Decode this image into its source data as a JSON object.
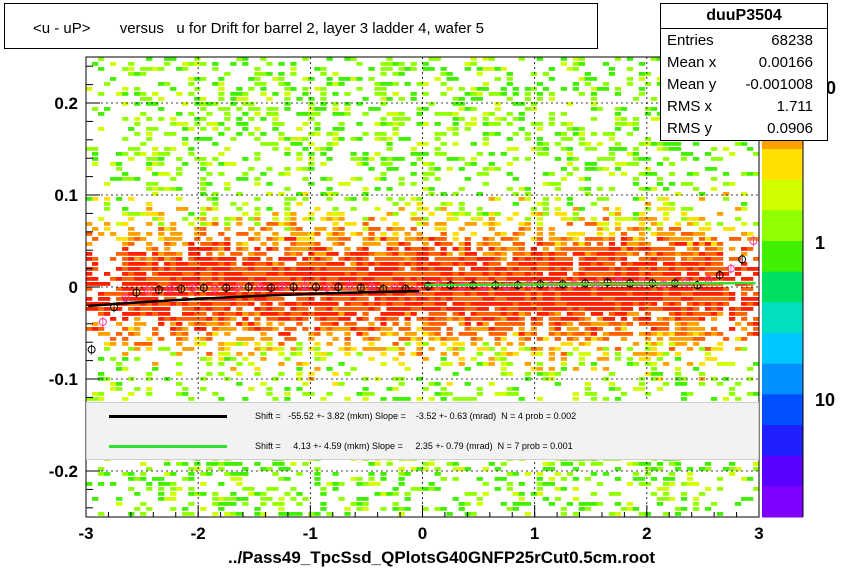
{
  "title": "<u - uP>       versus   u for Drift for barrel 2, layer 3 ladder 4, wafer 5",
  "stats": {
    "name": "duuP3504",
    "rows": [
      {
        "label": "Entries",
        "value": "68238"
      },
      {
        "label": "Mean x",
        "value": "0.00166"
      },
      {
        "label": "Mean y",
        "value": "-0.001008"
      },
      {
        "label": "RMS x",
        "value": "1.711"
      },
      {
        "label": "RMS y",
        "value": "0.0906"
      }
    ]
  },
  "legend": [
    {
      "color": "#000000",
      "text": "Shift =   -55.52 +- 3.82 (mkm) Slope =    -3.52 +- 0.63 (mrad)  N = 4 prob = 0.002"
    },
    {
      "color": "#33dd33",
      "text": "Shift =     4.13 +- 4.59 (mkm) Slope =     2.35 +- 0.79 (mrad)  N = 7 prob = 0.001"
    }
  ],
  "footer": "../Pass49_TpcSsd_QPlotsG40GNFP25rCut0.5cm.root",
  "colors": {
    "palette": [
      "#7f00ff",
      "#5a00ff",
      "#2020ff",
      "#0050ff",
      "#0090ff",
      "#00c8ff",
      "#00e0c0",
      "#00e060",
      "#40f000",
      "#90ff00",
      "#d0ff00",
      "#ffe000",
      "#ffa000",
      "#ff6000",
      "#ff2000"
    ],
    "fit_black": "#000000",
    "fit_green": "#33dd33",
    "profile_marker": "#ff3399"
  },
  "chart_data": {
    "type": "heatmap",
    "title": "<u - uP>       versus   u for Drift for barrel 2, layer 3 ladder 4, wafer 5",
    "xlim": [
      -3,
      3
    ],
    "ylim": [
      -0.25,
      0.25
    ],
    "x_ticks": [
      -3,
      -2,
      -1,
      0,
      1,
      2,
      3
    ],
    "y_ticks": [
      -0.2,
      -0.1,
      0,
      0.1,
      0.2
    ],
    "x_tick_labels": [
      "-3",
      "-2",
      "-1",
      "0",
      "1",
      "2",
      "3"
    ],
    "y_tick_labels": [
      "-0.2",
      "-0.1",
      "0",
      "0.1",
      "0.2"
    ],
    "colorbar_labels": [
      "1",
      "10"
    ],
    "colorbar_partial_label": "0",
    "grid": true,
    "profile": {
      "x": [
        -2.95,
        -2.85,
        -2.75,
        -2.65,
        -2.55,
        -2.45,
        -2.35,
        -2.25,
        -2.15,
        -2.05,
        -1.95,
        -1.85,
        -1.75,
        -1.65,
        -1.55,
        -1.45,
        -1.35,
        -1.25,
        -1.15,
        -1.05,
        -0.95,
        -0.85,
        -0.75,
        -0.65,
        -0.55,
        -0.45,
        -0.35,
        -0.25,
        -0.15,
        -0.05,
        0.05,
        0.15,
        0.25,
        0.35,
        0.45,
        0.55,
        0.65,
        0.75,
        0.85,
        0.95,
        1.05,
        1.15,
        1.25,
        1.35,
        1.45,
        1.55,
        1.65,
        1.75,
        1.85,
        1.95,
        2.05,
        2.15,
        2.25,
        2.35,
        2.45,
        2.55,
        2.65,
        2.75,
        2.85,
        2.95
      ],
      "y": [
        -0.068,
        -0.038,
        -0.022,
        -0.012,
        -0.006,
        -0.004,
        -0.003,
        -0.002,
        -0.002,
        -0.001,
        -0.001,
        -0.002,
        -0.001,
        -0.001,
        0.0,
        0.0,
        -0.001,
        0.001,
        0.0,
        0.001,
        0.0,
        -0.001,
        0.0,
        0.001,
        -0.001,
        0.0,
        -0.002,
        -0.001,
        -0.002,
        -0.004,
        0.001,
        0.003,
        0.002,
        0.001,
        0.002,
        0.001,
        0.002,
        0.001,
        0.002,
        0.003,
        0.003,
        0.002,
        0.003,
        0.003,
        0.004,
        0.003,
        0.005,
        0.006,
        0.004,
        0.005,
        0.004,
        0.003,
        0.004,
        0.005,
        0.002,
        0.008,
        0.013,
        0.02,
        0.03,
        0.05
      ]
    },
    "fits": [
      {
        "x_range": [
          -3,
          0
        ],
        "shift_mkm": -55.52,
        "slope_mrad": -3.52
      },
      {
        "x_range": [
          0,
          3
        ],
        "shift_mkm": 4.13,
        "slope_mrad": 2.35
      }
    ]
  }
}
